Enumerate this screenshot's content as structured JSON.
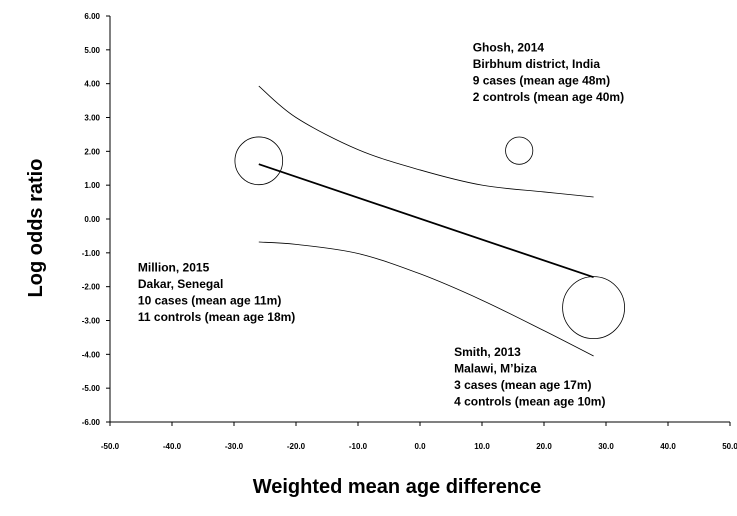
{
  "chart_data": {
    "type": "scatter",
    "title": "",
    "xlabel": "Weighted mean age difference",
    "ylabel": "Log odds ratio",
    "xlim": [
      -50,
      50
    ],
    "ylim": [
      -6,
      6
    ],
    "x_ticks": [
      "-50.0",
      "-40.0",
      "-30.0",
      "-20.0",
      "-10.0",
      "0.0",
      "10.0",
      "20.0",
      "30.0",
      "40.0",
      "50.0"
    ],
    "y_ticks": [
      "6.00",
      "5.00",
      "4.00",
      "3.00",
      "2.00",
      "1.00",
      "0.00",
      "-1.00",
      "-2.00",
      "-3.00",
      "-4.00",
      "-5.00",
      "-6.00"
    ],
    "grid": false,
    "legend": "none",
    "points": [
      {
        "x": -26.0,
        "y": 1.72,
        "size": 0.77
      },
      {
        "x": 16.0,
        "y": 2.02,
        "size": 0.44
      },
      {
        "x": 28.0,
        "y": -2.62,
        "size": 1.0
      }
    ],
    "regression_line": {
      "x": [
        -26.0,
        28.0
      ],
      "y": [
        1.62,
        -1.72
      ]
    },
    "ci_upper": {
      "x": [
        -26,
        -20,
        -10,
        0,
        10,
        20,
        28
      ],
      "y": [
        3.93,
        3.0,
        2.05,
        1.45,
        1.0,
        0.8,
        0.65
      ]
    },
    "ci_lower": {
      "x": [
        -26,
        -20,
        -10,
        0,
        10,
        20,
        28
      ],
      "y": [
        -0.68,
        -0.75,
        -1.02,
        -1.62,
        -2.4,
        -3.3,
        -4.05
      ]
    },
    "annotations": [
      {
        "x": 8.5,
        "y": 4.95,
        "lines": [
          "Ghosh, 2014",
          "Birbhum district, India",
          "9 cases (mean age 48m)",
          "2 controls (mean age 40m)"
        ]
      },
      {
        "x": -45.5,
        "y": -1.55,
        "lines": [
          "Million, 2015",
          "Dakar, Senegal",
          "10 cases (mean age 11m)",
          "11 controls (mean age 18m)"
        ]
      },
      {
        "x": 5.5,
        "y": -4.05,
        "lines": [
          "Smith, 2013",
          "Malawi, M’biza",
          "3 cases (mean age 17m)",
          "4 controls (mean age 10m)"
        ]
      }
    ]
  }
}
